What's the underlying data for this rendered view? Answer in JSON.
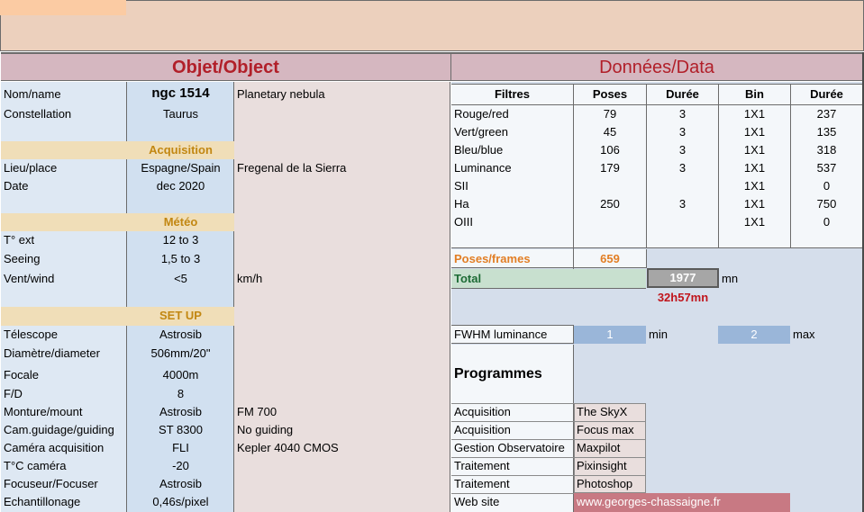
{
  "colors": {
    "top_band": "#ecd0bd",
    "orange_tab": "#fbcba3",
    "header_pink": "#d5b7c0",
    "left_label_bg": "#dee8f3",
    "left_value_bg": "#d1e0f0",
    "middle_bg": "#e9dedd",
    "subheader_bg": "#f0deb8",
    "data_blue": "#d5deeb",
    "data_white": "#f4f7fa",
    "fwhm_blue": "#9ab6d9",
    "total_green": "#c8e0cf",
    "total_box": "#a6a6a6",
    "website_bg": "#c87983",
    "red_text": "#b11f29",
    "gold_text": "#c28712",
    "orange_text": "#e27e24"
  },
  "left": {
    "title": "Objet/Object",
    "rows": [
      {
        "label": "Nom/name",
        "value": "ngc 1514",
        "note": "Planetary nebula"
      },
      {
        "label": "Constellation",
        "value": "Taurus",
        "note": ""
      },
      {
        "label": "",
        "value": "",
        "note": ""
      },
      {
        "label": "",
        "value": "Acquisition",
        "note": ""
      },
      {
        "label": "Lieu/place",
        "value": "Espagne/Spain",
        "note": "Fregenal de la Sierra"
      },
      {
        "label": "Date",
        "value": "dec 2020",
        "note": ""
      },
      {
        "label": "",
        "value": "",
        "note": ""
      },
      {
        "label": "",
        "value": "Météo",
        "note": ""
      },
      {
        "label": "T° ext",
        "value": "12 to 3",
        "note": ""
      },
      {
        "label": "Seeing",
        "value": "1,5 to 3",
        "note": ""
      },
      {
        "label": "Vent/wind",
        "value": "<5",
        "note": "km/h"
      },
      {
        "label": "",
        "value": "",
        "note": ""
      },
      {
        "label": "",
        "value": "SET UP",
        "note": ""
      },
      {
        "label": "Télescope",
        "value": "Astrosib",
        "note": ""
      },
      {
        "label": "Diamètre/diameter",
        "value": "506mm/20\"",
        "note": ""
      },
      {
        "label": "Focale",
        "value": "4000m",
        "note": ""
      },
      {
        "label": "F/D",
        "value": "8",
        "note": ""
      },
      {
        "label": "Monture/mount",
        "value": "Astrosib",
        "note": "FM 700"
      },
      {
        "label": "Cam.guidage/guiding",
        "value": "ST 8300",
        "note": "No guiding"
      },
      {
        "label": "Caméra acquisition",
        "value": "FLI",
        "note": "Kepler 4040 CMOS"
      },
      {
        "label": "T°C caméra",
        "value": "-20",
        "note": ""
      },
      {
        "label": "Focuseur/Focuser",
        "value": "Astrosib",
        "note": ""
      },
      {
        "label": "Echantillonage",
        "value": "0,46s/pixel",
        "note": ""
      }
    ]
  },
  "right": {
    "title": "Données/Data",
    "columns": [
      "Filtres",
      "Poses",
      "Durée",
      "Bin",
      "Durée"
    ],
    "filters": [
      {
        "filter": "Rouge/red",
        "poses": "79",
        "duree": "3",
        "bin": "1X1",
        "total": "237"
      },
      {
        "filter": "Vert/green",
        "poses": "45",
        "duree": "3",
        "bin": "1X1",
        "total": "135"
      },
      {
        "filter": "Bleu/blue",
        "poses": "106",
        "duree": "3",
        "bin": "1X1",
        "total": "318"
      },
      {
        "filter": "Luminance",
        "poses": "179",
        "duree": "3",
        "bin": "1X1",
        "total": "537"
      },
      {
        "filter": "SII",
        "poses": "",
        "duree": "",
        "bin": "1X1",
        "total": "0"
      },
      {
        "filter": "Ha",
        "poses": "250",
        "duree": "3",
        "bin": "1X1",
        "total": "750"
      },
      {
        "filter": "OIII",
        "poses": "",
        "duree": "",
        "bin": "1X1",
        "total": "0"
      }
    ],
    "poses_label": "Poses/frames",
    "poses_value": "659",
    "total_label": "Total",
    "total_value": "1977",
    "total_unit": "mn",
    "total_hours": "32h57mn",
    "fwhm_label": "FWHM luminance",
    "fwhm_min": "1",
    "fwhm_min_label": "min",
    "fwhm_max": "2",
    "fwhm_max_label": "max",
    "programmes_title": "Programmes",
    "programmes": [
      {
        "task": "Acquisition",
        "software": "The SkyX"
      },
      {
        "task": "Acquisition",
        "software": "Focus max"
      },
      {
        "task": "Gestion Observatoire",
        "software": "Maxpilot"
      },
      {
        "task": "Traitement",
        "software": "Pixinsight"
      },
      {
        "task": "Traitement",
        "software": "Photoshop"
      }
    ],
    "website_label": "Web site",
    "website_url": "www.georges-chassaigne.fr"
  }
}
